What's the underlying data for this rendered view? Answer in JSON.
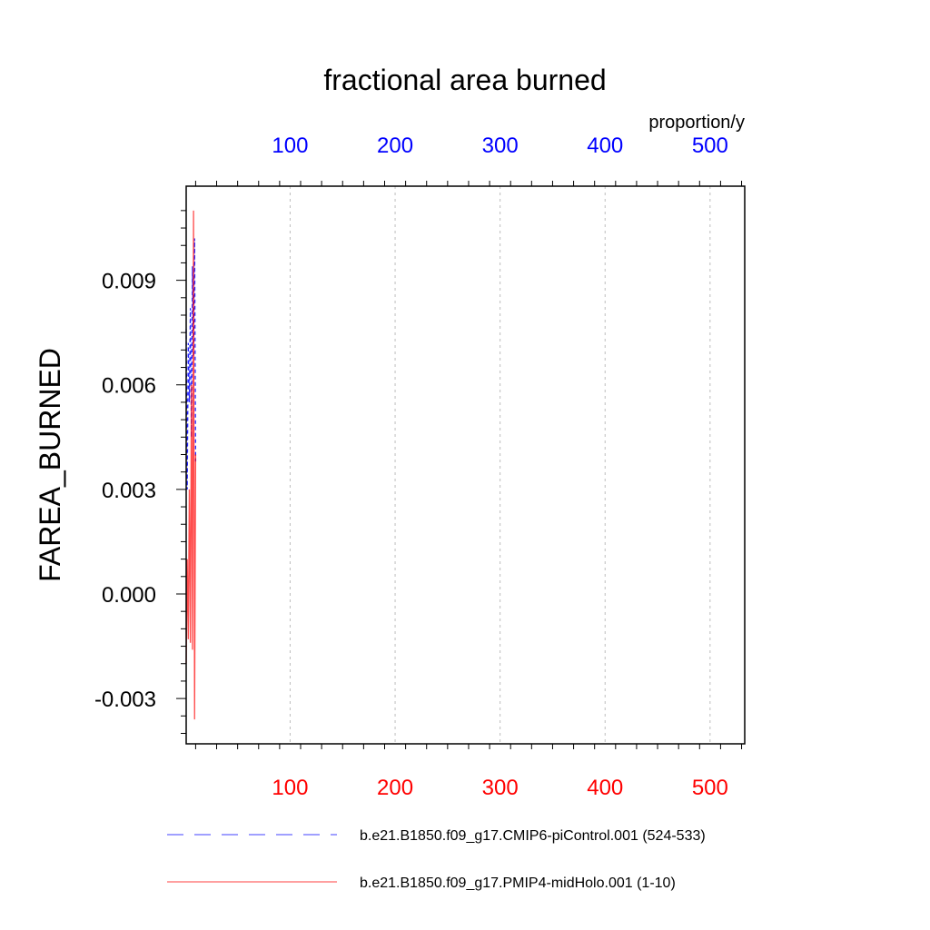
{
  "chart_data": {
    "type": "line",
    "title": "fractional area burned",
    "units": "proportion/y",
    "ylabel": "FAREA_BURNED",
    "xlabel": "",
    "xlim": [
      1,
      533
    ],
    "ylim": [
      -0.0043,
      0.0117
    ],
    "grid": "dashed vertical",
    "y_ticks": [
      {
        "v": -0.003,
        "label": "-0.003"
      },
      {
        "v": 0.0,
        "label": "0.000"
      },
      {
        "v": 0.003,
        "label": "0.003"
      },
      {
        "v": 0.006,
        "label": "0.006"
      },
      {
        "v": 0.009,
        "label": "0.009"
      }
    ],
    "x_bottom_ticks": [
      {
        "v": 100,
        "label": "100"
      },
      {
        "v": 200,
        "label": "200"
      },
      {
        "v": 300,
        "label": "300"
      },
      {
        "v": 400,
        "label": "400"
      },
      {
        "v": 500,
        "label": "500"
      }
    ],
    "x_top_ticks": [
      {
        "v": 100,
        "label": "100"
      },
      {
        "v": 200,
        "label": "200"
      },
      {
        "v": 300,
        "label": "300"
      },
      {
        "v": 400,
        "label": "400"
      },
      {
        "v": 500,
        "label": "500"
      }
    ],
    "legend_position": "bottom",
    "series": [
      {
        "name": "b.e21.B1850.f09_g17.CMIP6-piControl.001 (524-533)",
        "color": "#0000ff",
        "dash": "dashed",
        "axis": "top",
        "x": [
          1,
          2,
          3,
          4,
          5,
          6,
          7,
          8,
          9,
          10
        ],
        "values": [
          0.0076,
          0.003,
          0.0072,
          0.0055,
          0.0082,
          0.0045,
          0.0094,
          0.0068,
          0.0102,
          0.0038
        ]
      },
      {
        "name": "b.e21.B1850.f09_g17.PMIP4-midHolo.001 (1-10)",
        "color": "#ff0000",
        "dash": "solid",
        "axis": "bottom",
        "x": [
          1,
          2,
          3,
          4,
          5,
          6,
          7,
          8,
          9,
          10
        ],
        "values": [
          -0.002,
          0.001,
          -0.0013,
          0.003,
          -0.0014,
          0.006,
          -0.0016,
          0.011,
          -0.0036,
          0.004
        ]
      }
    ]
  },
  "colors": {
    "top_axis": "#0000ff",
    "bottom_axis": "#ff0000",
    "grid": "#bdbdbd"
  }
}
